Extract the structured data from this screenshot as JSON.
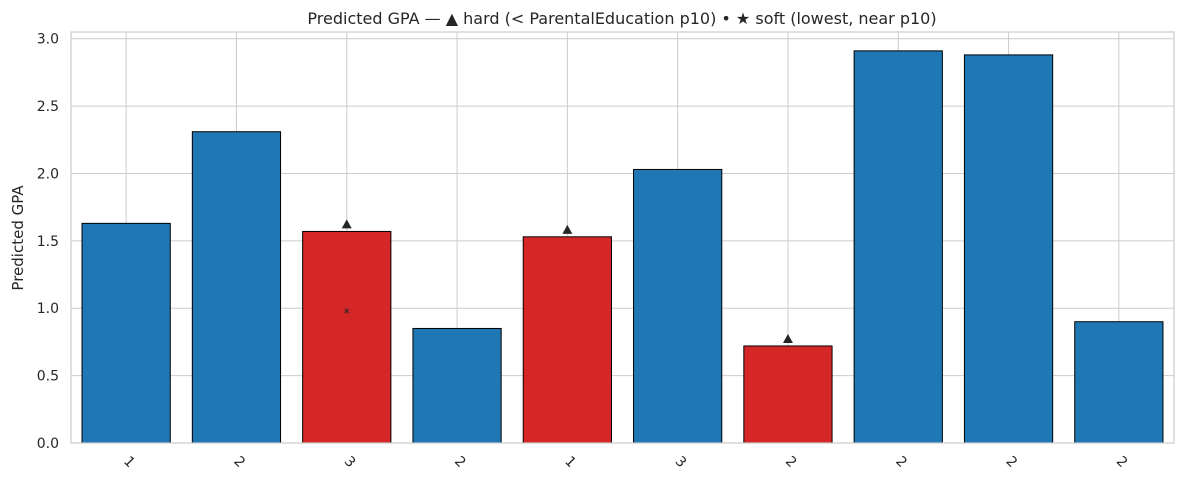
{
  "chart_data": {
    "type": "bar",
    "title": "Predicted GPA — ▲ hard (< ParentalEducation p10) • ★ soft (lowest, near p10)",
    "xlabel": "",
    "ylabel": "Predicted GPA",
    "categories": [
      "1",
      "2",
      "3",
      "2",
      "1",
      "3",
      "2",
      "2",
      "2",
      "2"
    ],
    "values": [
      1.63,
      2.31,
      1.57,
      0.85,
      1.53,
      2.03,
      0.72,
      2.91,
      2.88,
      0.9
    ],
    "highlighted": [
      false,
      false,
      true,
      false,
      true,
      false,
      true,
      false,
      false,
      false
    ],
    "hard_markers": [
      2,
      4,
      6
    ],
    "soft_markers": [
      2
    ],
    "ylim": [
      0,
      3.05
    ],
    "yticks": [
      0.0,
      0.5,
      1.0,
      1.5,
      2.0,
      2.5,
      3.0
    ],
    "ytick_labels": [
      "0.0",
      "0.5",
      "1.0",
      "1.5",
      "2.0",
      "2.5",
      "3.0"
    ],
    "grid": true,
    "colors": {
      "normal": "#1f77b4",
      "highlight": "#d62728",
      "marker": "#262626",
      "grid": "#cccccc",
      "spine": "#cccccc"
    }
  }
}
